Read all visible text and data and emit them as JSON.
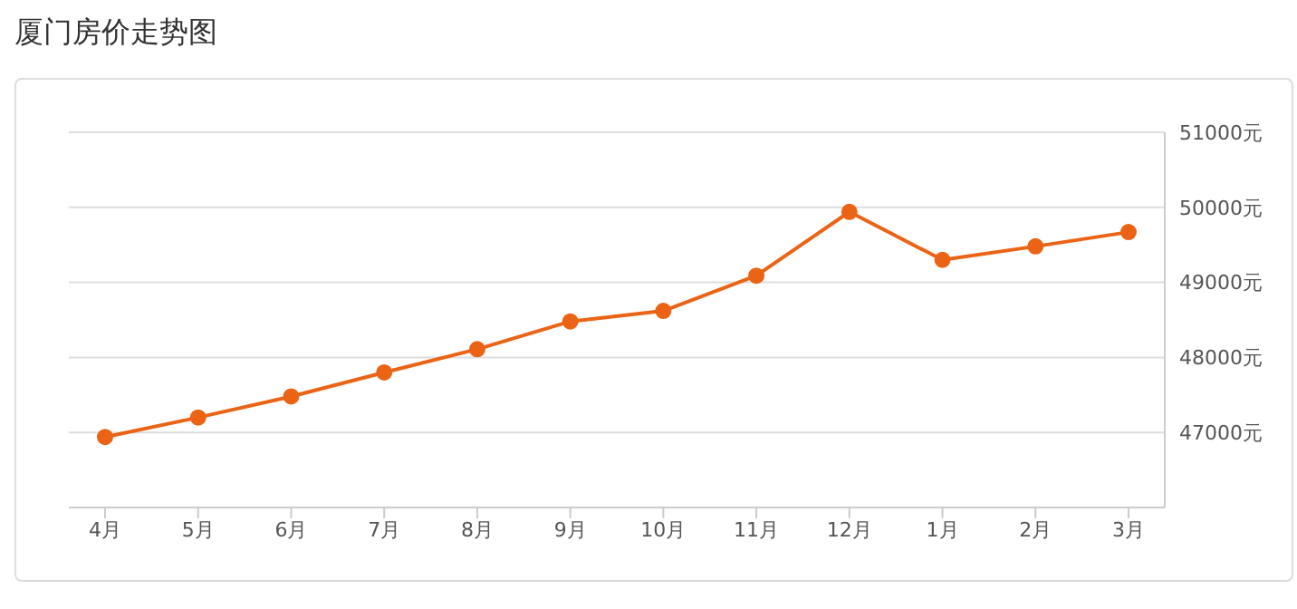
{
  "chart_data": {
    "type": "line",
    "title": "厦门房价走势图",
    "categories": [
      "4月",
      "5月",
      "6月",
      "7月",
      "8月",
      "9月",
      "10月",
      "11月",
      "12月",
      "1月",
      "2月",
      "3月"
    ],
    "series": [
      {
        "color": "#eb6416",
        "values": [
          46940,
          47200,
          47480,
          47800,
          48110,
          48480,
          48620,
          49090,
          49940,
          49300,
          49480,
          49670
        ]
      }
    ],
    "ylim": [
      46000,
      51000
    ],
    "yticks": [
      {
        "value": 47000,
        "label": "47000元"
      },
      {
        "value": 48000,
        "label": "48000元"
      },
      {
        "value": 49000,
        "label": "49000元"
      },
      {
        "value": 50000,
        "label": "50000元"
      },
      {
        "value": 51000,
        "label": "51000元"
      }
    ],
    "grid": "y",
    "marker": "circle",
    "line_style": "solid",
    "legend": false
  }
}
